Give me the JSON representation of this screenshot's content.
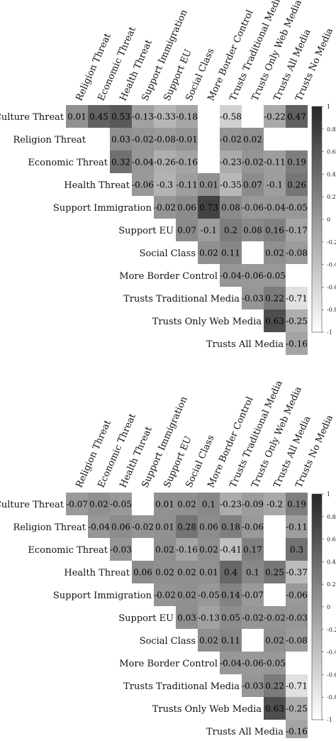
{
  "chart_data": [
    {
      "type": "heatmap",
      "variables": [
        "Religion Threat",
        "Economic Threat",
        "Health Threat",
        "Support Immigration",
        "Support EU",
        "Social Class",
        "More Border Control",
        "Trusts Traditional Media",
        "Trusts Only Web Media",
        "Trusts All Media",
        "Trusts No Media"
      ],
      "row_labels": [
        "Culture Threat",
        "Religion Threat",
        "Economic Threat",
        "Health Threat",
        "Support Immigration",
        "Support EU",
        "Social Class",
        "More Border Control",
        "Trusts Traditional Media",
        "Trusts Only Web Media",
        "Trusts All Media"
      ],
      "rows": [
        [
          0.01,
          0.45,
          0.53,
          -0.13,
          -0.33,
          -0.18,
          null,
          -0.58,
          null,
          -0.22,
          0.47
        ],
        [
          null,
          0.03,
          -0.02,
          -0.08,
          -0.01,
          null,
          -0.02,
          0.02,
          null,
          null
        ],
        [
          0.32,
          -0.04,
          -0.26,
          -0.16,
          null,
          -0.23,
          -0.02,
          -0.11,
          0.19
        ],
        [
          -0.06,
          -0.3,
          -0.11,
          0.01,
          -0.35,
          0.07,
          -0.1,
          0.26
        ],
        [
          -0.02,
          0.06,
          0.73,
          0.08,
          -0.06,
          -0.04,
          -0.05
        ],
        [
          0.07,
          -0.1,
          0.2,
          0.08,
          0.16,
          -0.17
        ],
        [
          0.02,
          0.11,
          null,
          0.02,
          -0.08
        ],
        [
          -0.04,
          -0.06,
          -0.05,
          null
        ],
        [
          -0.03,
          0.22,
          -0.71
        ],
        [
          0.63,
          -0.25
        ],
        [
          -0.16
        ]
      ],
      "scale": {
        "min": -1,
        "max": 1,
        "ticks": [
          "1",
          "0.8",
          "0.6",
          "0.4",
          "0.2",
          "0",
          "-0.2",
          "-0.4",
          "-0.6",
          "-0.8",
          "-1"
        ]
      }
    },
    {
      "type": "heatmap",
      "variables": [
        "Religion Threat",
        "Economic Threat",
        "Health Threat",
        "Support Immigration",
        "Support EU",
        "Social Class",
        "More Border Control",
        "Trusts Traditional Media",
        "Trusts Only Web Media",
        "Trusts All Media",
        "Trusts No Media"
      ],
      "row_labels": [
        "Culture Threat",
        "Religion Threat",
        "Economic Threat",
        "Health Threat",
        "Support Immigration",
        "Support EU",
        "Social Class",
        "More Border Control",
        "Trusts Traditional Media",
        "Trusts Only Web Media",
        "Trusts All Media"
      ],
      "rows": [
        [
          -0.07,
          0.02,
          -0.05,
          null,
          0.01,
          0.02,
          0.1,
          -0.23,
          -0.09,
          -0.2,
          0.19
        ],
        [
          -0.04,
          0.06,
          -0.02,
          0.01,
          0.28,
          0.06,
          0.18,
          -0.06,
          null,
          -0.11
        ],
        [
          -0.03,
          null,
          0.02,
          -0.16,
          0.02,
          -0.41,
          0.17,
          null,
          0.3
        ],
        [
          0.06,
          0.02,
          0.02,
          0.01,
          0.4,
          0.1,
          0.25,
          -0.37
        ],
        [
          -0.02,
          0.02,
          -0.05,
          0.14,
          -0.07,
          null,
          -0.06
        ],
        [
          0.03,
          -0.13,
          0.05,
          -0.02,
          -0.02,
          -0.03
        ],
        [
          0.02,
          0.11,
          null,
          0.02,
          -0.08
        ],
        [
          -0.04,
          -0.06,
          -0.05,
          null
        ],
        [
          -0.03,
          0.22,
          -0.71
        ],
        [
          0.63,
          -0.25
        ],
        [
          -0.16
        ]
      ],
      "scale": {
        "min": -1,
        "max": 1,
        "ticks": [
          "1",
          "0.8",
          "0.6",
          "0.4",
          "0.2",
          "0",
          "-0.2",
          "-0.4",
          "-0.6",
          "-0.8",
          "-1"
        ]
      }
    }
  ]
}
